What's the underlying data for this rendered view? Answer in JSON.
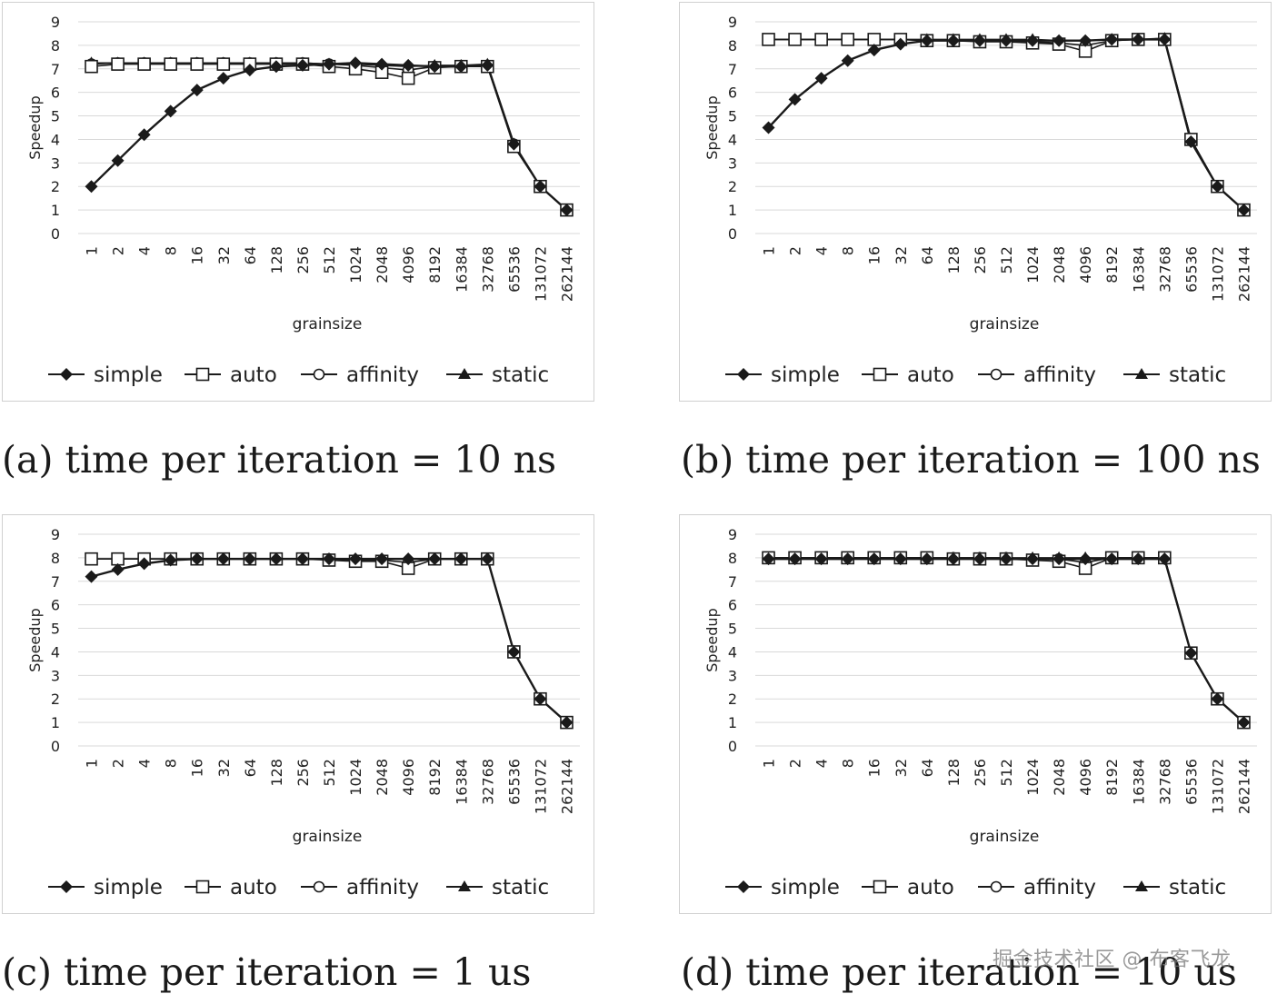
{
  "chart_data": [
    {
      "type": "line",
      "caption": "(a) time per iteration = 10 ns",
      "xlabel": "grainsize",
      "ylabel": "Speedup",
      "ylim": [
        0,
        9
      ],
      "yticks": [
        "0",
        "1",
        "2",
        "3",
        "4",
        "5",
        "6",
        "7",
        "8",
        "9"
      ],
      "categories": [
        "1",
        "2",
        "4",
        "8",
        "16",
        "32",
        "64",
        "128",
        "256",
        "512",
        "1024",
        "2048",
        "4096",
        "8192",
        "16384",
        "32768",
        "65536",
        "131072",
        "262144"
      ],
      "grid": true,
      "legend_position": "bottom",
      "series": [
        {
          "name": "simple",
          "marker": "diamond",
          "values": [
            2.0,
            3.1,
            4.2,
            5.2,
            6.1,
            6.6,
            6.95,
            7.1,
            7.15,
            7.2,
            7.25,
            7.2,
            7.15,
            7.1,
            7.1,
            7.15,
            3.8,
            2.0,
            1.0
          ]
        },
        {
          "name": "auto",
          "marker": "square",
          "values": [
            7.1,
            7.2,
            7.2,
            7.2,
            7.2,
            7.2,
            7.2,
            7.2,
            7.2,
            7.1,
            7.0,
            6.85,
            6.6,
            7.05,
            7.1,
            7.1,
            3.7,
            2.0,
            1.0
          ]
        },
        {
          "name": "affinity",
          "marker": "circle",
          "values": [
            7.2,
            7.25,
            7.25,
            7.25,
            7.25,
            7.25,
            7.25,
            7.25,
            7.25,
            7.2,
            7.15,
            7.05,
            6.95,
            7.1,
            7.1,
            7.15,
            3.8,
            2.0,
            1.0
          ]
        },
        {
          "name": "static",
          "marker": "triangle",
          "values": [
            7.25,
            7.25,
            7.25,
            7.25,
            7.25,
            7.25,
            7.25,
            7.25,
            7.25,
            7.2,
            7.2,
            7.15,
            7.1,
            7.15,
            7.15,
            7.2,
            3.8,
            2.0,
            1.0
          ]
        }
      ]
    },
    {
      "type": "line",
      "caption": "(b) time per iteration = 100 ns",
      "xlabel": "grainsize",
      "ylabel": "Speedup",
      "ylim": [
        0,
        9
      ],
      "yticks": [
        "0",
        "1",
        "2",
        "3",
        "4",
        "5",
        "6",
        "7",
        "8",
        "9"
      ],
      "categories": [
        "1",
        "2",
        "4",
        "8",
        "16",
        "32",
        "64",
        "128",
        "256",
        "512",
        "1024",
        "2048",
        "4096",
        "8192",
        "16384",
        "32768",
        "65536",
        "131072",
        "262144"
      ],
      "grid": true,
      "legend_position": "bottom",
      "series": [
        {
          "name": "simple",
          "marker": "diamond",
          "values": [
            4.5,
            5.7,
            6.6,
            7.35,
            7.8,
            8.05,
            8.2,
            8.2,
            8.2,
            8.2,
            8.2,
            8.2,
            8.2,
            8.25,
            8.25,
            8.25,
            3.9,
            2.0,
            1.0
          ]
        },
        {
          "name": "auto",
          "marker": "square",
          "values": [
            8.25,
            8.25,
            8.25,
            8.25,
            8.25,
            8.25,
            8.2,
            8.2,
            8.15,
            8.15,
            8.1,
            8.05,
            7.75,
            8.2,
            8.25,
            8.25,
            4.0,
            2.0,
            1.0
          ]
        },
        {
          "name": "affinity",
          "marker": "circle",
          "values": [
            8.25,
            8.25,
            8.25,
            8.25,
            8.25,
            8.25,
            8.2,
            8.2,
            8.2,
            8.2,
            8.15,
            8.1,
            8.0,
            8.2,
            8.25,
            8.25,
            4.0,
            2.0,
            1.0
          ]
        },
        {
          "name": "static",
          "marker": "triangle",
          "values": [
            8.25,
            8.25,
            8.25,
            8.25,
            8.25,
            8.25,
            8.25,
            8.25,
            8.25,
            8.25,
            8.25,
            8.2,
            8.2,
            8.25,
            8.25,
            8.3,
            4.0,
            2.0,
            1.0
          ]
        }
      ]
    },
    {
      "type": "line",
      "caption": "(c) time per iteration = 1 us",
      "xlabel": "grainsize",
      "ylabel": "Speedup",
      "ylim": [
        0,
        9
      ],
      "yticks": [
        "0",
        "1",
        "2",
        "3",
        "4",
        "5",
        "6",
        "7",
        "8",
        "9"
      ],
      "categories": [
        "1",
        "2",
        "4",
        "8",
        "16",
        "32",
        "64",
        "128",
        "256",
        "512",
        "1024",
        "2048",
        "4096",
        "8192",
        "16384",
        "32768",
        "65536",
        "131072",
        "262144"
      ],
      "grid": true,
      "legend_position": "bottom",
      "series": [
        {
          "name": "simple",
          "marker": "diamond",
          "values": [
            7.2,
            7.5,
            7.75,
            7.9,
            7.95,
            7.95,
            7.95,
            7.95,
            7.95,
            7.95,
            7.95,
            7.95,
            7.95,
            7.95,
            7.95,
            7.95,
            4.0,
            2.0,
            1.0
          ]
        },
        {
          "name": "auto",
          "marker": "square",
          "values": [
            7.95,
            7.95,
            7.95,
            7.95,
            7.95,
            7.95,
            7.95,
            7.95,
            7.95,
            7.9,
            7.85,
            7.85,
            7.55,
            7.95,
            7.95,
            7.95,
            4.0,
            2.0,
            1.0
          ]
        },
        {
          "name": "affinity",
          "marker": "circle",
          "values": [
            7.95,
            7.95,
            7.95,
            7.95,
            7.95,
            7.95,
            7.95,
            7.95,
            7.95,
            7.95,
            7.9,
            7.9,
            7.8,
            7.95,
            7.95,
            7.95,
            4.0,
            2.0,
            1.0
          ]
        },
        {
          "name": "static",
          "marker": "triangle",
          "values": [
            7.95,
            7.95,
            7.95,
            7.95,
            7.95,
            7.95,
            7.95,
            7.95,
            7.95,
            7.95,
            7.95,
            7.95,
            7.95,
            7.95,
            7.95,
            7.95,
            4.0,
            2.0,
            1.0
          ]
        }
      ]
    },
    {
      "type": "line",
      "caption": "(d) time per iteration = 10 us",
      "xlabel": "grainsize",
      "ylabel": "Speedup",
      "ylim": [
        0,
        9
      ],
      "yticks": [
        "0",
        "1",
        "2",
        "3",
        "4",
        "5",
        "6",
        "7",
        "8",
        "9"
      ],
      "categories": [
        "1",
        "2",
        "4",
        "8",
        "16",
        "32",
        "64",
        "128",
        "256",
        "512",
        "1024",
        "2048",
        "4096",
        "8192",
        "16384",
        "32768",
        "65536",
        "131072",
        "262144"
      ],
      "grid": true,
      "legend_position": "bottom",
      "series": [
        {
          "name": "simple",
          "marker": "diamond",
          "values": [
            7.95,
            7.95,
            7.95,
            7.95,
            7.95,
            7.95,
            7.95,
            7.95,
            7.95,
            7.95,
            7.95,
            7.95,
            7.95,
            7.95,
            7.95,
            7.95,
            3.95,
            2.0,
            1.0
          ]
        },
        {
          "name": "auto",
          "marker": "square",
          "values": [
            8.0,
            8.0,
            8.0,
            8.0,
            8.0,
            8.0,
            8.0,
            7.95,
            7.95,
            7.95,
            7.9,
            7.85,
            7.55,
            8.0,
            8.0,
            8.0,
            3.95,
            2.0,
            1.0
          ]
        },
        {
          "name": "affinity",
          "marker": "circle",
          "values": [
            8.0,
            8.0,
            8.0,
            8.0,
            8.0,
            8.0,
            8.0,
            8.0,
            8.0,
            8.0,
            7.95,
            7.95,
            7.8,
            8.0,
            8.0,
            8.0,
            3.95,
            2.0,
            1.0
          ]
        },
        {
          "name": "static",
          "marker": "triangle",
          "values": [
            8.0,
            8.0,
            8.0,
            8.0,
            8.0,
            8.0,
            8.0,
            8.0,
            8.0,
            8.0,
            8.0,
            8.0,
            8.0,
            8.0,
            8.0,
            8.0,
            3.95,
            2.0,
            1.0
          ]
        }
      ]
    }
  ],
  "watermark": "掘金技术社区 @ 布客飞龙",
  "colors": {
    "line": "#1a1a1a",
    "grid": "#d9d9d9",
    "frame": "#d0d0d0"
  }
}
